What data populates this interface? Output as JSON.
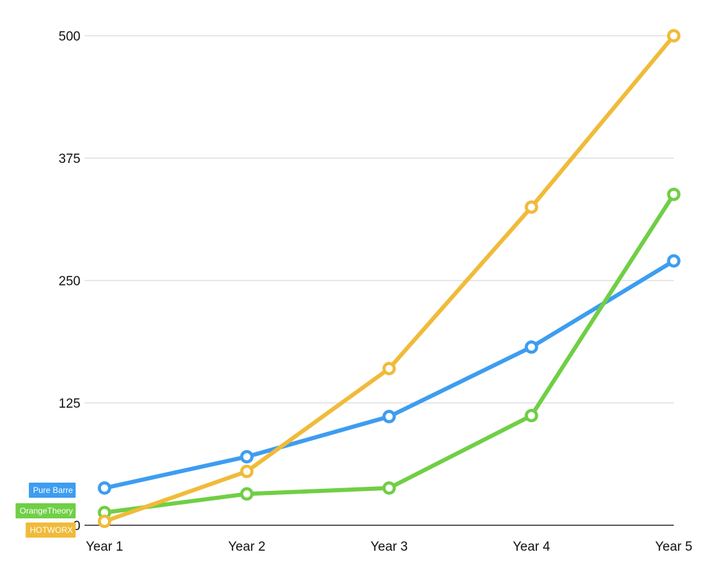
{
  "chart_data": {
    "type": "line",
    "title": "",
    "xlabel": "",
    "ylabel": "",
    "categories": [
      "Year 1",
      "Year 2",
      "Year 3",
      "Year 4",
      "Year 5"
    ],
    "ylim": [
      0,
      500
    ],
    "yticks": [
      0,
      125,
      250,
      375,
      500
    ],
    "grid": true,
    "legend_position": "left, next to the y-axis origin",
    "series": [
      {
        "name": "Pure Barre",
        "color": "#3d9df0",
        "values": [
          38,
          70,
          111,
          182,
          270
        ]
      },
      {
        "name": "OrangeTheory",
        "color": "#6fcf45",
        "values": [
          13,
          32,
          38,
          112,
          338
        ]
      },
      {
        "name": "HOTWORX",
        "color": "#f0bb3a",
        "values": [
          4,
          55,
          160,
          325,
          500
        ]
      }
    ]
  }
}
